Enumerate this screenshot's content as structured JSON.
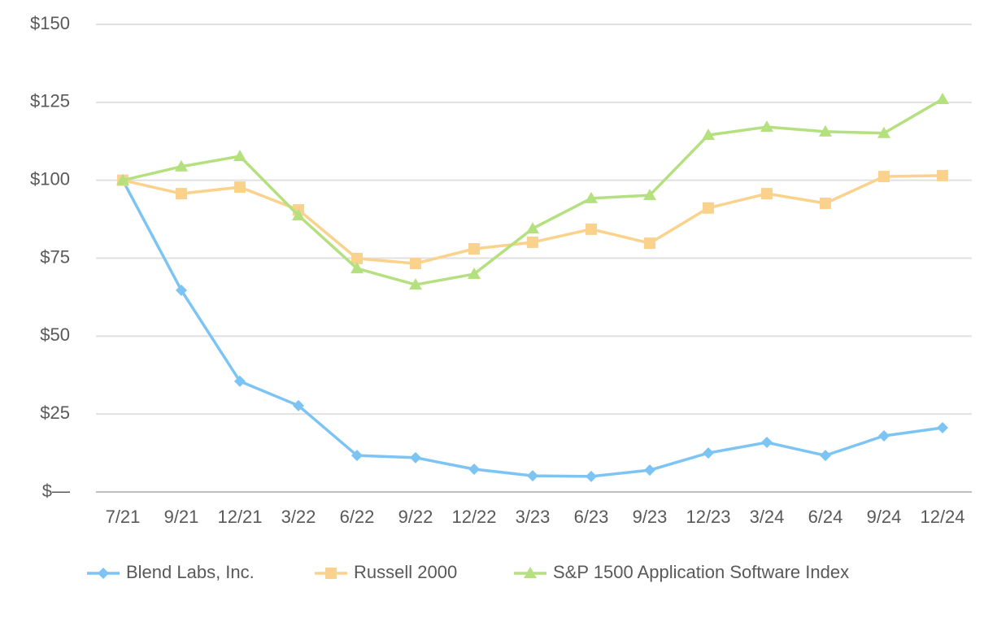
{
  "chart_data": {
    "type": "line",
    "categories": [
      "7/21",
      "9/21",
      "12/21",
      "3/22",
      "6/22",
      "9/22",
      "12/22",
      "3/23",
      "6/23",
      "9/23",
      "12/23",
      "3/24",
      "6/24",
      "9/24",
      "12/24"
    ],
    "series": [
      {
        "name": "Blend Labs, Inc.",
        "color": "#7cc4f4",
        "marker": "diamond",
        "values": [
          100,
          64.7,
          35.5,
          27.7,
          11.7,
          11.0,
          7.3,
          5.2,
          5.0,
          7.0,
          12.5,
          15.9,
          11.7,
          18.0,
          20.6
        ]
      },
      {
        "name": "Russell 2000",
        "color": "#fad28c",
        "marker": "square",
        "values": [
          100,
          95.7,
          97.8,
          90.5,
          74.9,
          73.3,
          78.0,
          80.1,
          84.3,
          79.8,
          91.1,
          95.7,
          92.6,
          101.2,
          101.5
        ]
      },
      {
        "name": "S&P 1500 Application Software Index",
        "color": "#b5e07f",
        "marker": "triangle",
        "values": [
          100,
          104.4,
          107.7,
          88.7,
          71.7,
          66.5,
          69.9,
          84.5,
          94.2,
          95.2,
          114.5,
          117.1,
          115.6,
          115.1,
          126.0
        ]
      }
    ],
    "ylim": [
      0,
      150
    ],
    "yticks": [
      {
        "value": 0,
        "label": "$—"
      },
      {
        "value": 25,
        "label": "$25"
      },
      {
        "value": 50,
        "label": "$50"
      },
      {
        "value": 75,
        "label": "$75"
      },
      {
        "value": 100,
        "label": "$100"
      },
      {
        "value": 125,
        "label": "$125"
      },
      {
        "value": 150,
        "label": "$150"
      }
    ],
    "grid": true,
    "legend": "bottom"
  }
}
